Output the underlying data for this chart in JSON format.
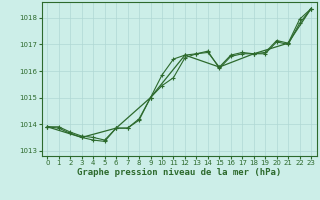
{
  "bg_color": "#cceee8",
  "grid_color": "#aadddd",
  "line_color": "#2d6a2d",
  "xlabel": "Graphe pression niveau de la mer (hPa)",
  "xlim": [
    -0.5,
    23.5
  ],
  "ylim": [
    1012.8,
    1018.6
  ],
  "yticks": [
    1013,
    1014,
    1015,
    1016,
    1017,
    1018
  ],
  "xticks": [
    0,
    1,
    2,
    3,
    4,
    5,
    6,
    7,
    8,
    9,
    10,
    11,
    12,
    13,
    14,
    15,
    16,
    17,
    18,
    19,
    20,
    21,
    22,
    23
  ],
  "series1": {
    "x": [
      0,
      1,
      2,
      3,
      4,
      5,
      6,
      7,
      8,
      9,
      10,
      11,
      12,
      13,
      14,
      15,
      16,
      17,
      18,
      19,
      20,
      21,
      22,
      23
    ],
    "y": [
      1013.9,
      1013.9,
      1013.7,
      1013.55,
      1013.5,
      1013.4,
      1013.85,
      1013.85,
      1014.2,
      1015.0,
      1015.85,
      1016.45,
      1016.6,
      1016.65,
      1016.75,
      1016.1,
      1016.55,
      1016.65,
      1016.65,
      1016.65,
      1017.1,
      1017.0,
      1017.8,
      1018.35
    ]
  },
  "series2": {
    "x": [
      0,
      1,
      2,
      3,
      4,
      5,
      6,
      7,
      8,
      9,
      10,
      11,
      12,
      13,
      14,
      15,
      16,
      17,
      18,
      19,
      20,
      21,
      22,
      23
    ],
    "y": [
      1013.9,
      1013.85,
      1013.65,
      1013.5,
      1013.4,
      1013.35,
      1013.85,
      1013.85,
      1014.15,
      1015.0,
      1015.45,
      1015.75,
      1016.5,
      1016.65,
      1016.7,
      1016.15,
      1016.6,
      1016.7,
      1016.65,
      1016.7,
      1017.15,
      1017.05,
      1017.95,
      1018.35
    ]
  },
  "series3": {
    "x": [
      0,
      3,
      6,
      9,
      12,
      15,
      18,
      21,
      23
    ],
    "y": [
      1013.9,
      1013.5,
      1013.85,
      1015.0,
      1016.6,
      1016.15,
      1016.65,
      1017.05,
      1018.35
    ]
  }
}
